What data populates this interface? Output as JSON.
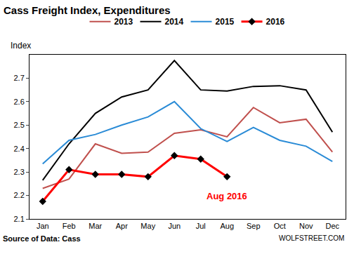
{
  "chart_data": {
    "type": "line",
    "title": "Cass Freight Index, Expenditures",
    "ylabel": "Index",
    "categories": [
      "Jan",
      "Feb",
      "Mar",
      "Apr",
      "May",
      "Jun",
      "Jul",
      "Aug",
      "Sep",
      "Oct",
      "Nov",
      "Dec"
    ],
    "series": [
      {
        "name": "2013",
        "color": "#c0504d",
        "line_style": "solid",
        "values": [
          2.23,
          2.27,
          2.42,
          2.38,
          2.385,
          2.465,
          2.48,
          2.45,
          2.575,
          2.51,
          2.525,
          2.385
        ]
      },
      {
        "name": "2014",
        "color": "#000000",
        "line_style": "solid",
        "values": [
          2.265,
          2.42,
          2.55,
          2.62,
          2.65,
          2.775,
          2.65,
          2.645,
          2.665,
          2.668,
          2.65,
          2.47
        ]
      },
      {
        "name": "2015",
        "color": "#2a8bd6",
        "line_style": "solid",
        "values": [
          2.335,
          2.435,
          2.46,
          2.5,
          2.535,
          2.6,
          2.485,
          2.43,
          2.49,
          2.435,
          2.41,
          2.345
        ]
      },
      {
        "name": "2016",
        "color": "#ff0000",
        "line_style": "solid",
        "marker": "diamond",
        "values": [
          2.175,
          2.31,
          2.29,
          2.29,
          2.28,
          2.37,
          2.355,
          2.28,
          null,
          null,
          null,
          null
        ]
      }
    ],
    "ylim": [
      2.1,
      2.8
    ],
    "yticks": [
      2.1,
      2.2,
      2.3,
      2.4,
      2.5,
      2.6,
      2.7
    ],
    "grid": false,
    "legend": "top",
    "annotations": [
      {
        "text": "Aug 2016",
        "x": "Aug",
        "y": 2.225,
        "color": "#ff0000"
      }
    ],
    "source": "Source of Data: Cass",
    "credit": "WOLFSTREET.COM"
  }
}
